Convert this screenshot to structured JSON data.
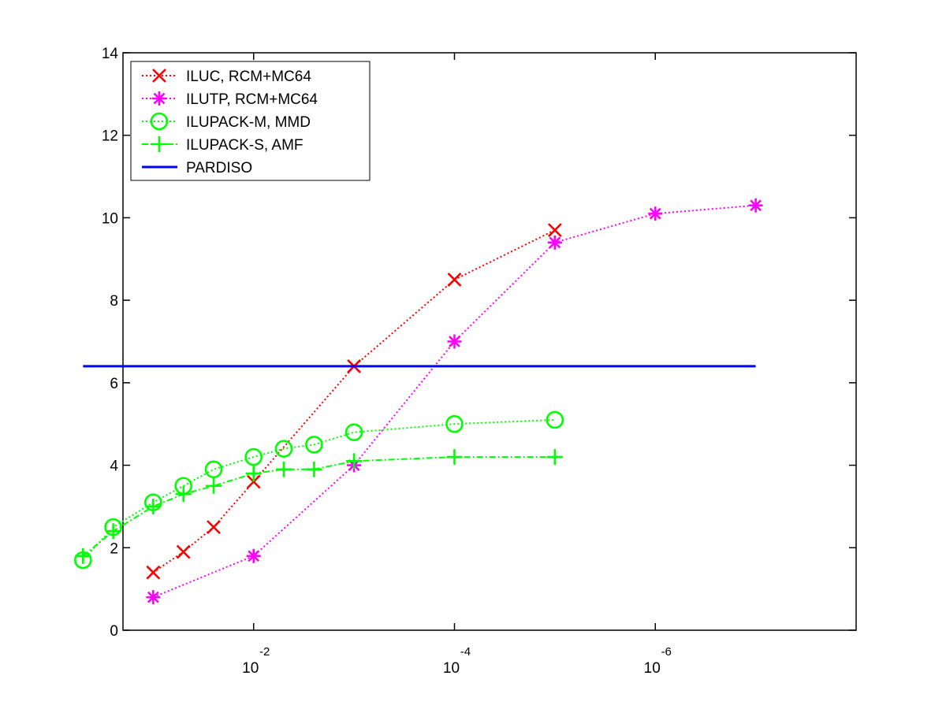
{
  "chart_data": {
    "type": "line",
    "title": "",
    "xlabel": "",
    "ylabel": "",
    "x_scale": "log-reversed",
    "xlim": [
      0.2,
      1e-08
    ],
    "ylim": [
      0,
      14
    ],
    "y_ticks": [
      0,
      2,
      4,
      6,
      8,
      10,
      12,
      14
    ],
    "y_tick_labels": [
      "0",
      "2",
      "4",
      "6",
      "8",
      "10",
      "12",
      "14"
    ],
    "x_ticks": [
      {
        "value": 0.01,
        "base": "10",
        "exponent": "-2"
      },
      {
        "value": 0.0001,
        "base": "10",
        "exponent": "-4"
      },
      {
        "value": 1e-06,
        "base": "10",
        "exponent": "-6"
      }
    ],
    "grid": false,
    "legend_position": "top-left",
    "series": [
      {
        "name": "ILUC, RCM+MC64",
        "color": "#ff0000",
        "marker": "x",
        "line": "dotted",
        "x": [
          0.1,
          0.05,
          0.025,
          0.01,
          0.001,
          0.0001,
          1e-05
        ],
        "y": [
          1.4,
          1.9,
          2.5,
          3.6,
          6.4,
          8.5,
          9.7
        ]
      },
      {
        "name": "ILUTP, RCM+MC64",
        "color": "#ff00ff",
        "marker": "asterisk",
        "line": "dotted",
        "x": [
          0.1,
          0.01,
          0.001,
          0.0001,
          1e-05,
          1e-06,
          1e-07
        ],
        "y": [
          0.8,
          1.8,
          4.0,
          7.0,
          9.4,
          10.1,
          10.3
        ]
      },
      {
        "name": "ILUPACK-M, MMD",
        "color": "#00ff00",
        "marker": "circle",
        "line": "dotted",
        "x": [
          0.5,
          0.25,
          0.1,
          0.05,
          0.025,
          0.01,
          0.005,
          0.0025,
          0.001,
          0.0001,
          1e-05
        ],
        "y": [
          1.7,
          2.5,
          3.1,
          3.5,
          3.9,
          4.2,
          4.4,
          4.5,
          4.8,
          5.0,
          5.1
        ]
      },
      {
        "name": "ILUPACK-S, AMF",
        "color": "#00ff00",
        "marker": "plus",
        "line": "dash-dot",
        "x": [
          0.5,
          0.25,
          0.1,
          0.05,
          0.025,
          0.01,
          0.005,
          0.0025,
          0.001,
          0.0001,
          1e-05
        ],
        "y": [
          1.8,
          2.4,
          3.0,
          3.3,
          3.5,
          3.8,
          3.9,
          3.9,
          4.1,
          4.2,
          4.2
        ]
      },
      {
        "name": "PARDISO",
        "color": "#0000ff",
        "marker": "none",
        "line": "solid",
        "x": [
          0.5,
          1e-07
        ],
        "y": [
          6.4,
          6.4
        ]
      }
    ]
  }
}
